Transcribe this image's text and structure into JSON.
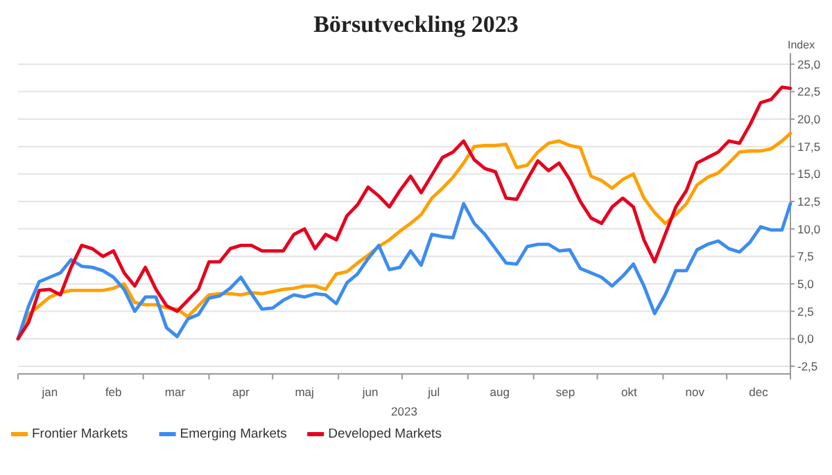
{
  "chart_data": {
    "type": "line",
    "title": "Börsutveckling 2023",
    "xlabel": "2023",
    "ylabel": "Index",
    "x": [
      "2023-01-01",
      "2023-01-06",
      "2023-01-11",
      "2023-01-16",
      "2023-01-21",
      "2023-01-26",
      "2023-01-31",
      "2023-02-05",
      "2023-02-10",
      "2023-02-15",
      "2023-02-20",
      "2023-02-25",
      "2023-03-02",
      "2023-03-07",
      "2023-03-12",
      "2023-03-17",
      "2023-03-22",
      "2023-03-27",
      "2023-04-01",
      "2023-04-06",
      "2023-04-11",
      "2023-04-16",
      "2023-04-21",
      "2023-04-26",
      "2023-05-01",
      "2023-05-06",
      "2023-05-11",
      "2023-05-16",
      "2023-05-21",
      "2023-05-26",
      "2023-05-31",
      "2023-06-05",
      "2023-06-10",
      "2023-06-15",
      "2023-06-20",
      "2023-06-25",
      "2023-06-30",
      "2023-07-05",
      "2023-07-10",
      "2023-07-15",
      "2023-07-20",
      "2023-07-25",
      "2023-07-30",
      "2023-08-04",
      "2023-08-09",
      "2023-08-14",
      "2023-08-19",
      "2023-08-24",
      "2023-08-29",
      "2023-09-03",
      "2023-09-08",
      "2023-09-13",
      "2023-09-18",
      "2023-09-23",
      "2023-09-28",
      "2023-10-03",
      "2023-10-08",
      "2023-10-13",
      "2023-10-18",
      "2023-10-23",
      "2023-10-28",
      "2023-11-02",
      "2023-11-07",
      "2023-11-12",
      "2023-11-17",
      "2023-11-22",
      "2023-11-27",
      "2023-12-02",
      "2023-12-07",
      "2023-12-12",
      "2023-12-17",
      "2023-12-22",
      "2023-12-27",
      "2023-12-31"
    ],
    "series": [
      {
        "name": "Frontier Markets",
        "color": "#ffa000",
        "values": [
          0,
          2.2,
          3.0,
          3.8,
          4.2,
          4.4,
          4.4,
          4.4,
          4.4,
          4.6,
          5.0,
          3.3,
          3.1,
          3.1,
          2.8,
          2.7,
          2.0,
          3.0,
          4.0,
          4.1,
          4.1,
          4.0,
          4.2,
          4.1,
          4.3,
          4.5,
          4.6,
          4.8,
          4.8,
          4.5,
          5.9,
          6.1,
          6.9,
          7.6,
          8.4,
          9.0,
          9.8,
          10.5,
          11.3,
          12.8,
          13.7,
          14.7,
          16.0,
          17.5,
          17.6,
          17.6,
          17.7,
          15.6,
          15.8,
          17.0,
          17.8,
          18.0,
          17.6,
          17.4,
          14.8,
          14.4,
          13.7,
          14.5,
          15.0,
          12.8,
          11.5,
          10.5,
          11.3,
          12.3,
          14.0,
          14.7,
          15.1,
          16.0,
          17.0,
          17.1,
          17.1,
          17.3,
          18.0,
          18.7
        ]
      },
      {
        "name": "Emerging Markets",
        "color": "#3c8cf0",
        "values": [
          0,
          3.0,
          5.2,
          5.6,
          6.0,
          7.2,
          6.6,
          6.5,
          6.2,
          5.6,
          4.5,
          2.5,
          3.8,
          3.8,
          1.0,
          0.2,
          1.8,
          2.2,
          3.7,
          3.9,
          4.6,
          5.6,
          4.1,
          2.7,
          2.8,
          3.5,
          4.0,
          3.8,
          4.1,
          4.0,
          3.2,
          5.1,
          5.9,
          7.3,
          8.5,
          6.3,
          6.5,
          8.0,
          6.7,
          9.5,
          9.3,
          9.2,
          12.3,
          10.5,
          9.5,
          8.2,
          6.9,
          6.8,
          8.4,
          8.6,
          8.6,
          8.0,
          8.1,
          6.4,
          6.0,
          5.6,
          4.8,
          5.7,
          6.8,
          4.8,
          2.3,
          4.0,
          6.2,
          6.2,
          8.1,
          8.6,
          8.9,
          8.2,
          7.9,
          8.8,
          10.2,
          9.9,
          9.9,
          12.3
        ]
      },
      {
        "name": "Developed Markets",
        "color": "#e6001e",
        "values": [
          0,
          1.5,
          4.4,
          4.5,
          4,
          6.5,
          8.5,
          8.2,
          7.5,
          8,
          6,
          4.8,
          6.5,
          4.5,
          3,
          2.5,
          3.5,
          4.5,
          7,
          7,
          8.2,
          8.5,
          8.5,
          8,
          8,
          8,
          9.5,
          10,
          8.2,
          9.5,
          9,
          11.2,
          12.2,
          13.8,
          13,
          12,
          13.5,
          14.8,
          13.3,
          14.9,
          16.5,
          17,
          18,
          16.3,
          15.5,
          15.2,
          12.8,
          12.7,
          14.5,
          16.2,
          15.3,
          16,
          14.5,
          12.5,
          11,
          10.5,
          12,
          12.8,
          12,
          9,
          7,
          9.5,
          12,
          13.5,
          16,
          16.5,
          17,
          18,
          17.8,
          19.5,
          21.5,
          21.8,
          22.9,
          22.8
        ]
      }
    ],
    "xlim": [
      "2023-01-01",
      "2023-12-31"
    ],
    "xticks": [
      {
        "value": "2023-01-01",
        "label": null
      },
      {
        "value": "2023-01-16",
        "label": "jan"
      },
      {
        "value": "2023-02-01",
        "label": null
      },
      {
        "value": "2023-02-15",
        "label": "feb"
      },
      {
        "value": "2023-03-01",
        "label": null
      },
      {
        "value": "2023-03-16",
        "label": "mar"
      },
      {
        "value": "2023-04-01",
        "label": null
      },
      {
        "value": "2023-04-16",
        "label": "apr"
      },
      {
        "value": "2023-05-01",
        "label": null
      },
      {
        "value": "2023-05-16",
        "label": "maj"
      },
      {
        "value": "2023-06-01",
        "label": null
      },
      {
        "value": "2023-06-16",
        "label": "jun"
      },
      {
        "value": "2023-07-01",
        "label": null
      },
      {
        "value": "2023-07-16",
        "label": "jul"
      },
      {
        "value": "2023-08-01",
        "label": null
      },
      {
        "value": "2023-08-16",
        "label": "aug"
      },
      {
        "value": "2023-09-01",
        "label": null
      },
      {
        "value": "2023-09-16",
        "label": "sep"
      },
      {
        "value": "2023-10-01",
        "label": null
      },
      {
        "value": "2023-10-16",
        "label": "okt"
      },
      {
        "value": "2023-11-01",
        "label": null
      },
      {
        "value": "2023-11-16",
        "label": "nov"
      },
      {
        "value": "2023-12-01",
        "label": null
      },
      {
        "value": "2023-12-16",
        "label": "dec"
      },
      {
        "value": "2023-12-31",
        "label": null
      }
    ],
    "ylim": [
      -3.2,
      26
    ],
    "yticks": [
      {
        "value": -2.5,
        "label": "-2,5"
      },
      {
        "value": 0,
        "label": "0,0"
      },
      {
        "value": 2.5,
        "label": "2,5"
      },
      {
        "value": 5,
        "label": "5,0"
      },
      {
        "value": 7.5,
        "label": "7,5"
      },
      {
        "value": 10,
        "label": "10,0"
      },
      {
        "value": 12.5,
        "label": "12,5"
      },
      {
        "value": 15,
        "label": "15,0"
      },
      {
        "value": 17.5,
        "label": "17,5"
      },
      {
        "value": 20,
        "label": "20,0"
      },
      {
        "value": 22.5,
        "label": "22,5"
      },
      {
        "value": 25,
        "label": "25,0"
      }
    ],
    "grid": "y",
    "legend": "bottom left",
    "marker": "none",
    "line_style": "solid"
  }
}
